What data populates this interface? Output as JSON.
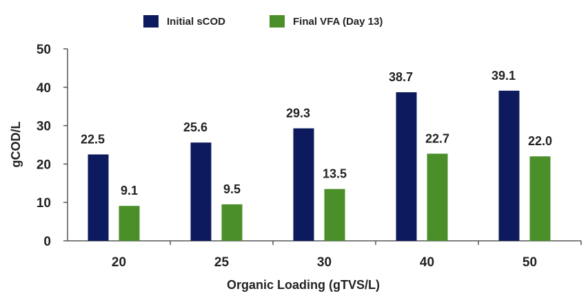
{
  "chart_data": {
    "type": "bar",
    "categories": [
      "20",
      "25",
      "30",
      "40",
      "50"
    ],
    "series": [
      {
        "name": "Initial sCOD",
        "color": "#0d1b5e",
        "values": [
          22.5,
          25.6,
          29.3,
          38.7,
          39.1
        ],
        "labels": [
          "22.5",
          "25.6",
          "29.3",
          "38.7",
          "39.1"
        ]
      },
      {
        "name": "Final VFA (Day 13)",
        "color": "#4a8f2a",
        "values": [
          9.1,
          9.5,
          13.5,
          22.7,
          22.0
        ],
        "labels": [
          "9.1",
          "9.5",
          "13.5",
          "22.7",
          "22.0"
        ]
      }
    ],
    "xlabel": "Organic Loading (gTVS/L)",
    "ylabel": "gCOD/L",
    "ylim": [
      0,
      50
    ],
    "yticks": [
      0,
      10,
      20,
      30,
      40,
      50
    ],
    "grid": false,
    "legend_position": "top-center"
  }
}
